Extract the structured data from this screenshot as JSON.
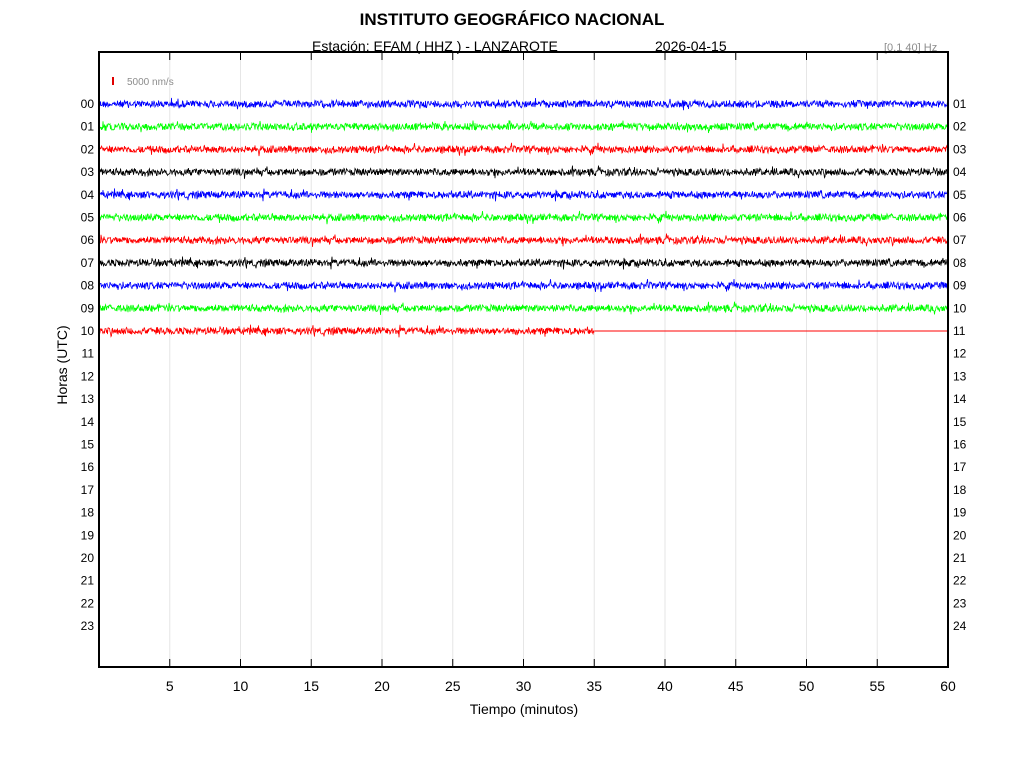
{
  "header": {
    "title": "INSTITUTO GEOGRÁFICO NACIONAL",
    "station_line": "Estación:  EFAM ( HHZ ) - LANZAROTE",
    "date": "2026-04-15",
    "filter": "[0.1 40] Hz"
  },
  "chart_data": {
    "type": "line",
    "title": "INSTITUTO GEOGRÁFICO NACIONAL",
    "xlabel": "Tiempo (minutos)",
    "ylabel": "Horas (UTC)",
    "xlim": [
      0,
      60
    ],
    "x_ticks": [
      "5",
      "10",
      "15",
      "20",
      "25",
      "30",
      "35",
      "40",
      "45",
      "50",
      "55",
      "60"
    ],
    "left_hour_labels": [
      "00",
      "01",
      "02",
      "03",
      "04",
      "05",
      "06",
      "07",
      "08",
      "09",
      "10",
      "11",
      "12",
      "13",
      "14",
      "15",
      "16",
      "17",
      "18",
      "19",
      "20",
      "21",
      "22",
      "23"
    ],
    "right_hour_labels": [
      "01",
      "02",
      "03",
      "04",
      "05",
      "06",
      "07",
      "08",
      "09",
      "10",
      "11",
      "12",
      "13",
      "14",
      "15",
      "16",
      "17",
      "18",
      "19",
      "20",
      "21",
      "22",
      "23",
      "24"
    ],
    "scale_bar_label": "5000 nm/s",
    "scale_bar_color": "#e00000",
    "trace_color_cycle": [
      "#0000ff",
      "#00ff00",
      "#ff0000",
      "#000000"
    ],
    "traces": [
      {
        "hour": "00",
        "color": "#0000ff",
        "end_minute": 60
      },
      {
        "hour": "01",
        "color": "#00ff00",
        "end_minute": 60
      },
      {
        "hour": "02",
        "color": "#ff0000",
        "end_minute": 60
      },
      {
        "hour": "03",
        "color": "#000000",
        "end_minute": 60
      },
      {
        "hour": "04",
        "color": "#0000ff",
        "end_minute": 60
      },
      {
        "hour": "05",
        "color": "#00ff00",
        "end_minute": 60
      },
      {
        "hour": "06",
        "color": "#ff0000",
        "end_minute": 60
      },
      {
        "hour": "07",
        "color": "#000000",
        "end_minute": 60
      },
      {
        "hour": "08",
        "color": "#0000ff",
        "end_minute": 60
      },
      {
        "hour": "09",
        "color": "#00ff00",
        "end_minute": 60
      },
      {
        "hour": "10",
        "color": "#ff0000",
        "end_minute": 35
      }
    ],
    "flat_line_after_end": true,
    "grid": "vertical",
    "grid_color": "#e6e6e6"
  }
}
